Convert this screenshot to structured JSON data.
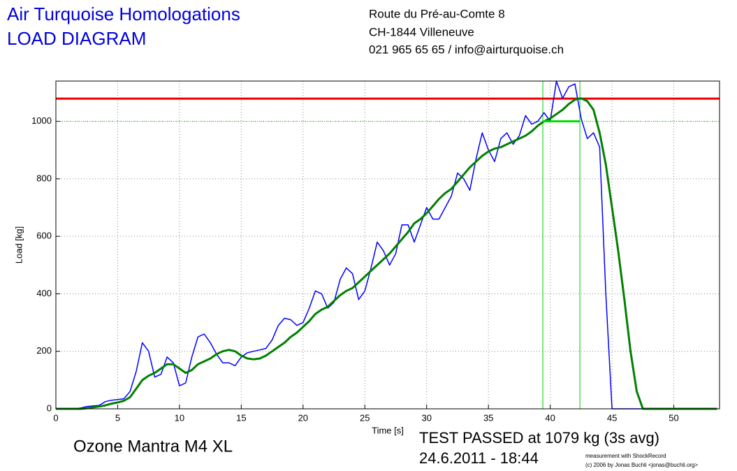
{
  "header": {
    "title": "Air Turquoise Homologations",
    "subtitle": "LOAD DIAGRAM",
    "address": [
      "Route du Pré-au-Comte 8",
      "CH-1844 Villeneuve",
      "021 965 65 65 / info@airturquoise.ch"
    ]
  },
  "chart_data": {
    "type": "line",
    "xlabel": "Time [s]",
    "ylabel": "Load [kg]",
    "xlim": [
      0,
      53.7
    ],
    "ylim": [
      0,
      1140
    ],
    "xticks": [
      0,
      5,
      10,
      15,
      20,
      25,
      30,
      35,
      40,
      45,
      50
    ],
    "yticks": [
      0,
      200,
      400,
      600,
      800,
      1000
    ],
    "grid": true,
    "x": [
      0,
      0.5,
      1,
      1.5,
      2,
      2.5,
      3,
      3.5,
      4,
      4.5,
      5,
      5.5,
      6,
      6.5,
      7,
      7.5,
      8,
      8.5,
      9,
      9.5,
      10,
      10.5,
      11,
      11.5,
      12,
      12.5,
      13,
      13.5,
      14,
      14.5,
      15,
      15.5,
      16,
      16.5,
      17,
      17.5,
      18,
      18.5,
      19,
      19.5,
      20,
      20.5,
      21,
      21.5,
      22,
      22.5,
      23,
      23.5,
      24,
      24.5,
      25,
      25.5,
      26,
      26.5,
      27,
      27.5,
      28,
      28.5,
      29,
      29.5,
      30,
      30.5,
      31,
      31.5,
      32,
      32.5,
      33,
      33.5,
      34,
      34.5,
      35,
      35.5,
      36,
      36.5,
      37,
      37.5,
      38,
      38.5,
      39,
      39.5,
      40,
      40.5,
      41,
      41.5,
      42,
      42.5,
      43,
      43.5,
      44,
      44.5,
      45,
      45.5,
      46,
      46.5,
      47,
      47.5,
      48,
      48.5,
      49,
      49.5,
      50,
      50.5,
      51,
      51.5,
      52,
      52.5,
      53,
      53.5
    ],
    "series": [
      {
        "color": "#0000ff",
        "width": 1.5,
        "values": [
          0,
          0,
          0,
          0,
          3,
          8,
          10,
          12,
          25,
          30,
          32,
          35,
          60,
          130,
          230,
          200,
          110,
          120,
          180,
          160,
          80,
          90,
          180,
          250,
          260,
          230,
          190,
          160,
          160,
          150,
          180,
          195,
          200,
          205,
          210,
          240,
          290,
          315,
          310,
          290,
          300,
          350,
          410,
          400,
          350,
          370,
          450,
          490,
          470,
          380,
          410,
          490,
          580,
          550,
          500,
          540,
          640,
          640,
          580,
          640,
          700,
          660,
          660,
          700,
          740,
          820,
          800,
          760,
          870,
          960,
          900,
          860,
          940,
          960,
          920,
          950,
          1020,
          990,
          1000,
          1030,
          1000,
          1140,
          1080,
          1120,
          1130,
          1010,
          940,
          960,
          910,
          400,
          0,
          0,
          0,
          0,
          0,
          0,
          0,
          0,
          0,
          0,
          0,
          0,
          0,
          0,
          0,
          0,
          0,
          0
        ]
      },
      {
        "color": "#008000",
        "width": 3,
        "values": [
          0,
          0,
          0,
          0,
          0,
          2,
          5,
          8,
          12,
          18,
          22,
          28,
          40,
          70,
          100,
          115,
          125,
          140,
          155,
          155,
          140,
          125,
          135,
          155,
          165,
          175,
          190,
          200,
          205,
          200,
          185,
          175,
          172,
          175,
          185,
          200,
          215,
          230,
          250,
          265,
          285,
          305,
          330,
          345,
          355,
          375,
          395,
          410,
          420,
          440,
          460,
          480,
          500,
          520,
          540,
          565,
          590,
          615,
          645,
          660,
          680,
          705,
          730,
          750,
          765,
          790,
          815,
          840,
          860,
          880,
          895,
          905,
          910,
          920,
          930,
          940,
          950,
          965,
          985,
          1000,
          1010,
          1025,
          1040,
          1060,
          1075,
          1080,
          1070,
          1040,
          960,
          850,
          700,
          550,
          380,
          200,
          60,
          0,
          0,
          0,
          0,
          0,
          0,
          0,
          0,
          0,
          0,
          0,
          0,
          0
        ]
      }
    ],
    "hlines": [
      {
        "value": 1079,
        "color": "#ee0000",
        "width": 3
      },
      {
        "value": 1000,
        "color": "#00cc00",
        "width": 1,
        "dotted": true
      }
    ],
    "vlines": [
      {
        "value": 39.4,
        "color": "#00cc00"
      },
      {
        "value": 42.4,
        "color": "#00cc00"
      }
    ],
    "hsegment": {
      "x": [
        39.4,
        42.4
      ],
      "y": 1000,
      "color": "#00dd00"
    }
  },
  "footer": {
    "product": "Ozone Mantra M4 XL",
    "result": "TEST PASSED at 1079 kg (3s avg)",
    "date": "24.6.2011 - 18:44",
    "credit": [
      "measurement with ShockRecord",
      "(c) 2006 by Jonas Buchli <jonas@buchli.org>"
    ]
  }
}
